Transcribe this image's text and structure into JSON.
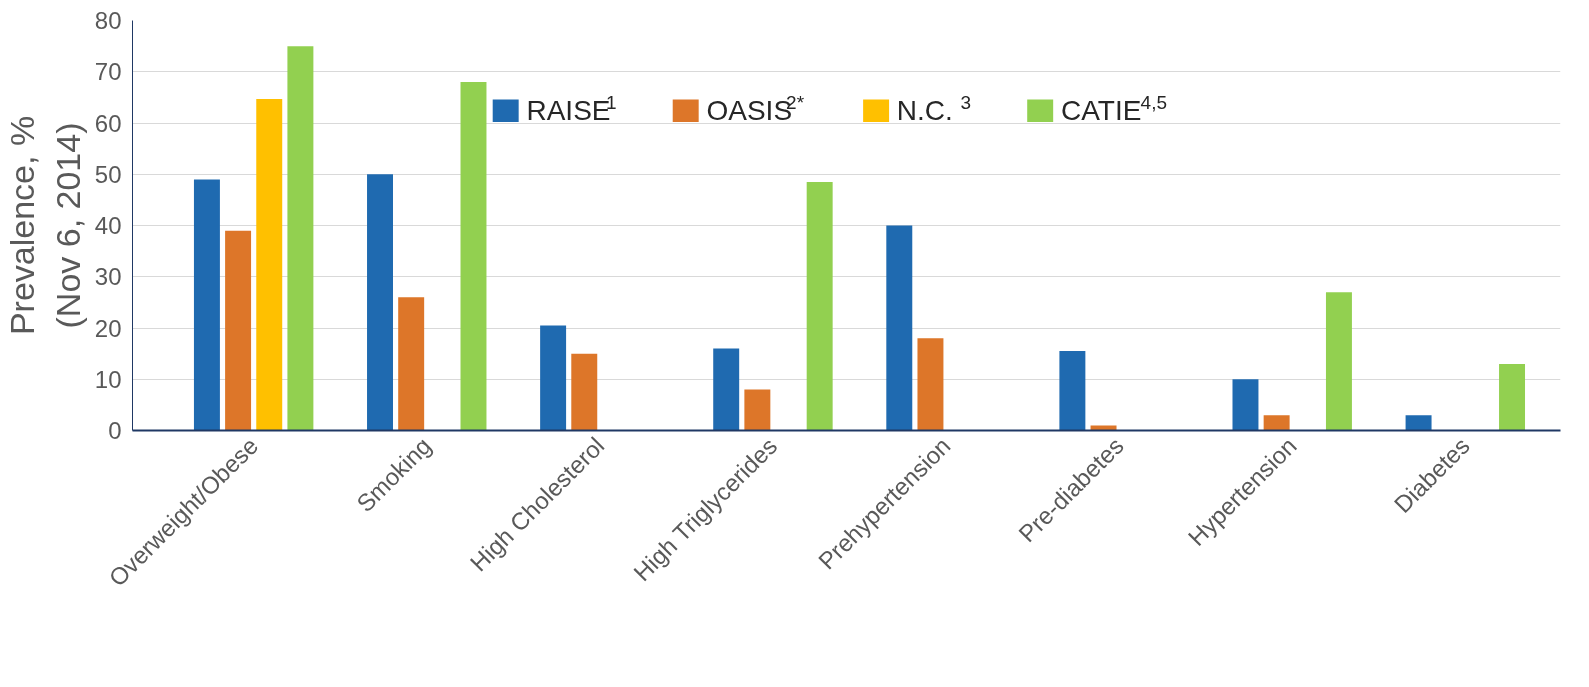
{
  "chart_data": {
    "type": "bar",
    "ylabel": "Prevalence, %\n(Nov 6, 2014)",
    "categories": [
      "Overweight/Obese",
      "Smoking",
      "High Cholesterol",
      "High Triglycerides",
      "Prehypertension",
      "Pre-diabetes",
      "Hypertension",
      "Diabetes"
    ],
    "series": [
      {
        "name": "RAISE$^{1}$",
        "color": "#1f6ab0",
        "values": [
          49,
          50,
          20.5,
          16,
          40,
          15.5,
          10,
          3
        ]
      },
      {
        "name": "OASIS$^{2*}$",
        "color": "#dd7629",
        "values": [
          39,
          26,
          15,
          8,
          18,
          1,
          3,
          null
        ]
      },
      {
        "name": "N.C.$^{3}$",
        "color": "#ffc000",
        "values": [
          64.7,
          null,
          null,
          null,
          null,
          null,
          null,
          null
        ]
      },
      {
        "name": "CATIE$^{4,5}$",
        "color": "#92d050",
        "values": [
          75,
          68,
          null,
          48.5,
          null,
          null,
          27,
          13
        ]
      }
    ],
    "ylim": [
      0,
      80
    ],
    "yticks": [
      0,
      10,
      20,
      30,
      40,
      50,
      60,
      70,
      80
    ],
    "grid": "y",
    "legend": "top"
  }
}
